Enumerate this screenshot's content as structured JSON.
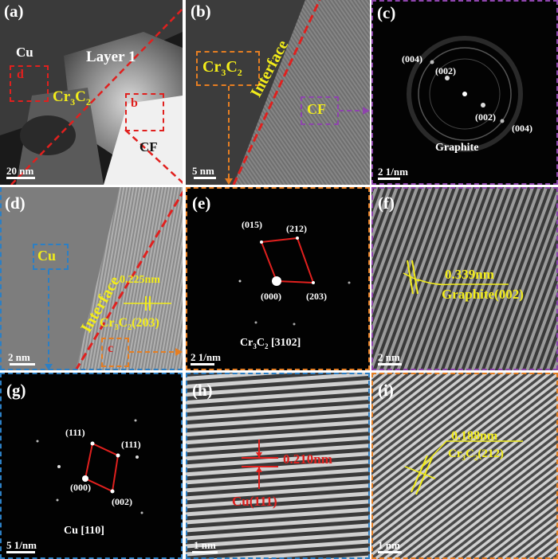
{
  "panels": {
    "a": {
      "label": "(a)",
      "cu": "Cu",
      "layer": "Layer 1",
      "phase": "Cr",
      "phase_sub1": "3",
      "phase_mid": "C",
      "phase_sub2": "2",
      "box_d": "d",
      "box_b": "b",
      "cf": "CF",
      "scale": "20 nm"
    },
    "b": {
      "label": "(b)",
      "phase": "Cr",
      "phase_sub1": "3",
      "phase_mid": "C",
      "phase_sub2": "2",
      "interface": "Interface",
      "cf": "CF",
      "scale": "5 nm"
    },
    "c": {
      "label": "(c)",
      "i004a": "(004)",
      "i002a": "(002)",
      "i002b": "(002)",
      "i004b": "(004)",
      "name": "Graphite",
      "scale": "2 1/nm"
    },
    "d": {
      "label": "(d)",
      "cu": "Cu",
      "interface": "Interface",
      "spacing": "0.225nm",
      "plane_pre": "Cr",
      "plane_sub1": "3",
      "plane_mid": "C",
      "plane_sub2": "2",
      "plane_idx": "(203)",
      "box_c": "c",
      "scale": "2 nm"
    },
    "e": {
      "label": "(e)",
      "i015": "(015)",
      "i212": "(212)",
      "i000": "(000)",
      "i203": "(203)",
      "zone_pre": "Cr",
      "zone_sub1": "3",
      "zone_mid": "C",
      "zone_sub2": "2",
      "zone_idx": " [3102]",
      "scale": "2 1/nm"
    },
    "f": {
      "label": "(f)",
      "spacing": "0.339nm",
      "plane": "Graphite(002)",
      "scale": "2 nm"
    },
    "g": {
      "label": "(g)",
      "i111a": "(111)",
      "i111b": "(111)",
      "i000": "(000)",
      "i002": "(002)",
      "zone": "Cu [110]",
      "scale": "5 1/nm"
    },
    "h": {
      "label": "(h)",
      "spacing": "0.210nm",
      "plane": "Cu(111)",
      "scale": "1 nm"
    },
    "i": {
      "label": "(i)",
      "spacing": "0.188nm",
      "plane_pre": "Cr",
      "plane_sub1": "3",
      "plane_mid": "C",
      "plane_sub2": "2",
      "plane_idx": "(212)",
      "scale": "1 nm"
    }
  },
  "colors": {
    "red_frame": "#e0201e",
    "orange_frame": "#e67e22",
    "purple_frame": "#8e44ad",
    "blue_frame": "#2c7fc4",
    "yellow_text": "#f2ec1a"
  }
}
